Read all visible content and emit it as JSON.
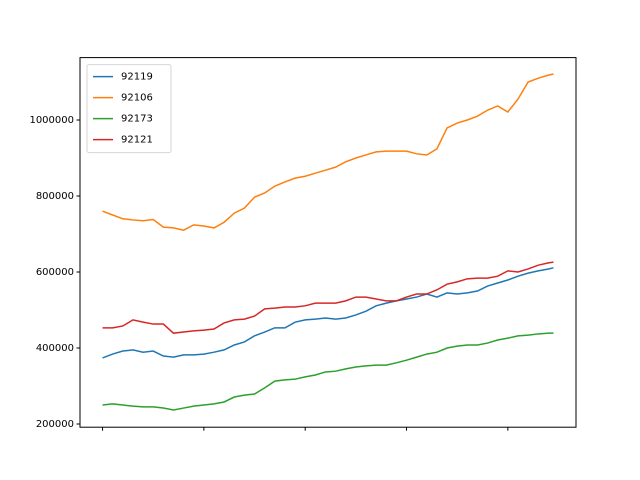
{
  "chart_data": {
    "type": "line",
    "x": [
      0,
      2,
      4,
      6,
      8,
      10,
      12,
      14,
      16,
      18,
      20,
      22,
      24,
      26,
      28,
      30,
      32,
      34,
      36,
      38,
      40,
      42,
      44,
      46,
      48,
      50,
      52,
      54,
      56,
      58,
      60,
      62,
      64,
      66,
      68,
      70,
      72,
      74,
      76,
      78,
      80,
      82,
      84,
      86,
      88,
      89
    ],
    "series": [
      {
        "name": "92119",
        "color": "#1f77b4",
        "values": [
          374000,
          384000,
          392000,
          395000,
          389000,
          392000,
          379000,
          376000,
          382000,
          382000,
          384000,
          389000,
          395000,
          408000,
          416000,
          432000,
          442000,
          453000,
          453000,
          468000,
          474000,
          476000,
          479000,
          476000,
          479000,
          487000,
          497000,
          511000,
          518000,
          524000,
          529000,
          534000,
          542000,
          534000,
          545000,
          542000,
          545000,
          550000,
          563000,
          571000,
          579000,
          589000,
          597000,
          603000,
          608000,
          611000
        ]
      },
      {
        "name": "92106",
        "color": "#ff7f0e",
        "values": [
          760000,
          750000,
          740000,
          737000,
          735000,
          738000,
          718000,
          716000,
          710000,
          724000,
          721000,
          716000,
          731000,
          755000,
          768000,
          797000,
          808000,
          826000,
          837000,
          847000,
          852000,
          860000,
          868000,
          876000,
          890000,
          900000,
          908000,
          916000,
          918000,
          918000,
          918000,
          911000,
          908000,
          924000,
          979000,
          992000,
          1000000,
          1010000,
          1026000,
          1037000,
          1021000,
          1055000,
          1100000,
          1110000,
          1118000,
          1121000
        ]
      },
      {
        "name": "92173",
        "color": "#2ca02c",
        "values": [
          250000,
          253000,
          250000,
          247000,
          245000,
          245000,
          242000,
          237000,
          242000,
          247000,
          250000,
          253000,
          258000,
          271000,
          276000,
          279000,
          295000,
          313000,
          316000,
          318000,
          324000,
          329000,
          337000,
          339000,
          345000,
          350000,
          353000,
          355000,
          355000,
          361000,
          368000,
          376000,
          384000,
          389000,
          400000,
          405000,
          408000,
          408000,
          413000,
          421000,
          426000,
          432000,
          434000,
          437000,
          439000,
          439000
        ]
      },
      {
        "name": "92121",
        "color": "#d62728",
        "values": [
          453000,
          453000,
          458000,
          474000,
          468000,
          463000,
          463000,
          439000,
          442000,
          445000,
          447000,
          450000,
          466000,
          474000,
          476000,
          484000,
          503000,
          505000,
          508000,
          508000,
          511000,
          518000,
          518000,
          518000,
          524000,
          534000,
          534000,
          529000,
          524000,
          524000,
          534000,
          542000,
          542000,
          553000,
          568000,
          574000,
          582000,
          584000,
          584000,
          589000,
          603000,
          600000,
          608000,
          618000,
          624000,
          626000
        ]
      }
    ],
    "xlim": [
      -4.45,
      93.45
    ],
    "xticks": [
      0,
      20,
      40,
      60,
      80
    ],
    "ylim": [
      191600,
      1164200
    ],
    "yticks": [
      200000,
      400000,
      600000,
      800000,
      1000000
    ],
    "grid": false,
    "legend": "upper-left"
  }
}
